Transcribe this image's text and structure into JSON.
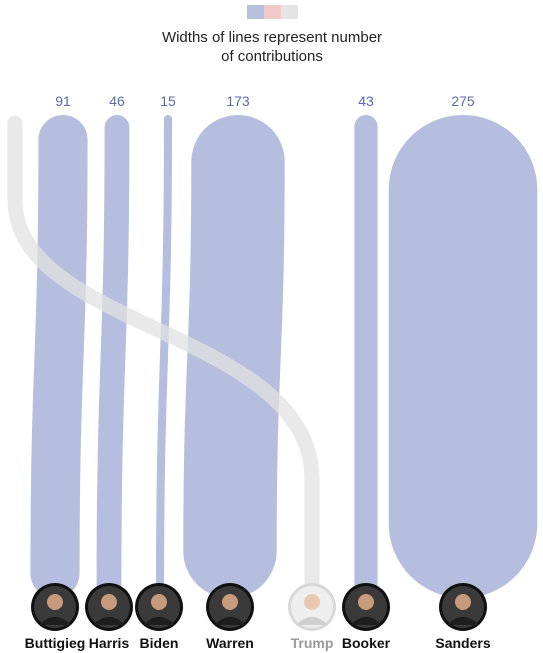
{
  "legend": {
    "swatch_colors": [
      "#b8c0de",
      "#f2c9c9",
      "#e4e4e4"
    ],
    "line1": "Widths of lines represent number",
    "line2": "of contributions"
  },
  "chart_data": {
    "type": "flow",
    "candidates": [
      {
        "name": "Buttigieg",
        "count": 91,
        "party": "democrat"
      },
      {
        "name": "Harris",
        "count": 46,
        "party": "democrat"
      },
      {
        "name": "Biden",
        "count": 15,
        "party": "democrat"
      },
      {
        "name": "Warren",
        "count": 173,
        "party": "democrat"
      },
      {
        "name": "Trump",
        "count": null,
        "party": "republican"
      },
      {
        "name": "Booker",
        "count": 43,
        "party": "democrat"
      },
      {
        "name": "Sanders",
        "count": 275,
        "party": "democrat"
      }
    ],
    "colors": {
      "democrat": "#b6bedf",
      "republican": "#e2e2e2",
      "avatar_ring": "#111111"
    }
  }
}
